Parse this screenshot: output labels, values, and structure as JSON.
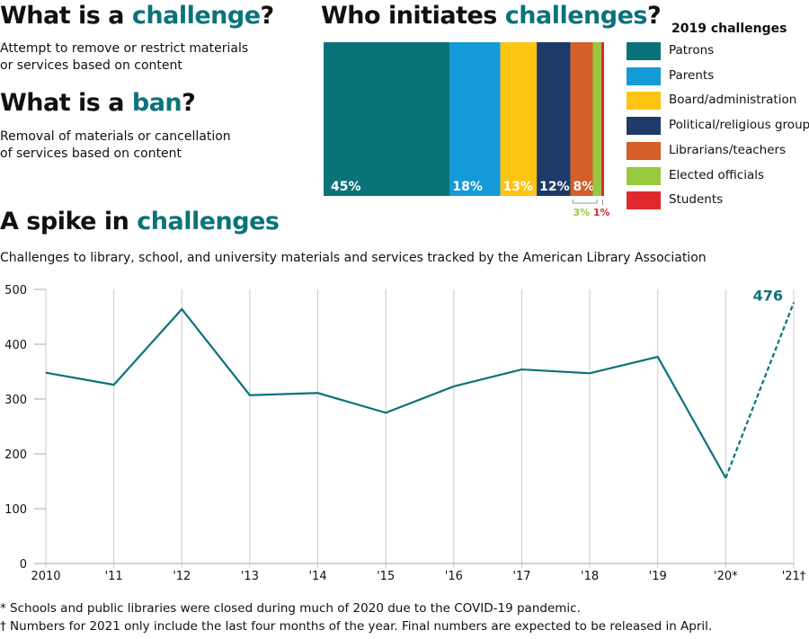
{
  "headings": {
    "challenge_q": {
      "pre": "What is a ",
      "em": "challenge",
      "post": "?"
    },
    "challenge_desc": [
      "Attempt to remove or restrict materials",
      "or services based on content"
    ],
    "ban_q": {
      "pre": "What is a ",
      "em": "ban",
      "post": "?"
    },
    "ban_desc": [
      "Removal of materials or cancellation",
      "of services based on content"
    ],
    "who_q": {
      "pre": "Who initiates ",
      "em": "challenges",
      "post": "?"
    },
    "spike": {
      "pre": "A spike in ",
      "em": "challenges"
    },
    "subtitle": "Challenges to library, school, and university materials and services tracked by the American Library Association"
  },
  "accent": "#0a737a",
  "chart_data": [
    {
      "type": "bar",
      "stacked": true,
      "orientation": "horizontal-stacked",
      "legend_title": "2019 challenges",
      "legend_placement": "right",
      "series": [
        {
          "name": "Patrons",
          "value": 45,
          "label": "45%",
          "color": "#0a737a"
        },
        {
          "name": "Parents",
          "value": 18,
          "label": "18%",
          "color": "#149bd7"
        },
        {
          "name": "Board/administration",
          "value": 13,
          "label": "13%",
          "color": "#fdc512"
        },
        {
          "name": "Political/religious groups",
          "value": 12,
          "label": "12%",
          "color": "#1d3a68"
        },
        {
          "name": "Librarians/teachers",
          "value": 8,
          "label": "8%",
          "color": "#d45f27"
        },
        {
          "name": "Elected officials",
          "value": 3,
          "label": "3%",
          "color": "#96c93d"
        },
        {
          "name": "Students",
          "value": 1,
          "label": "1%",
          "color": "#e0282e"
        }
      ]
    },
    {
      "type": "line",
      "categories": [
        "2010",
        "'11",
        "'12",
        "'13",
        "'14",
        "'15",
        "'16",
        "'17",
        "'18",
        "'19",
        "'20*",
        "'21†"
      ],
      "values": [
        348,
        326,
        464,
        307,
        311,
        275,
        323,
        354,
        347,
        377,
        156,
        476
      ],
      "dashed_last_segment": true,
      "annotation": "476",
      "ylim": [
        0,
        500
      ],
      "yticks": [
        0,
        100,
        200,
        300,
        400,
        500
      ],
      "grid": "vertical",
      "color": "#0a737a"
    }
  ],
  "footnotes": [
    "* Schools and public libraries were closed during much of 2020 due to the COVID-19 pandemic.",
    "† Numbers for 2021 only include the last four months of the year. Final numbers are expected to be released in April."
  ]
}
